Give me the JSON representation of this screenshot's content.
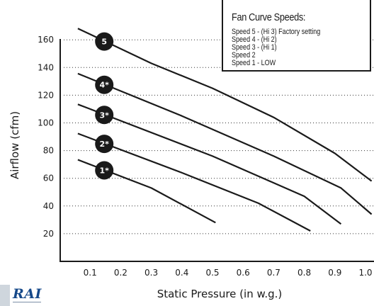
{
  "chart_data": {
    "type": "line",
    "xlabel": "Static Pressure (in w.g.)",
    "ylabel": "Airflow (cfm)",
    "xlim": [
      0,
      1.0
    ],
    "ylim": [
      0,
      170
    ],
    "x_ticks": [
      "0.1",
      "0.2",
      "0.3",
      "0.4",
      "0.5",
      "0.6",
      "0.7",
      "0.8",
      "0.9",
      "1.0"
    ],
    "y_ticks": [
      "20",
      "40",
      "60",
      "80",
      "100",
      "120",
      "140",
      "160"
    ],
    "grid": "horizontal dotted",
    "series": [
      {
        "name": "5",
        "points": [
          [
            0.1,
            164
          ],
          [
            0.3,
            143
          ],
          [
            0.5,
            125
          ],
          [
            0.7,
            104
          ],
          [
            0.9,
            78
          ],
          [
            1.02,
            58
          ]
        ]
      },
      {
        "name": "4*",
        "points": [
          [
            0.1,
            132
          ],
          [
            0.4,
            105
          ],
          [
            0.7,
            76
          ],
          [
            0.92,
            53
          ],
          [
            1.02,
            34
          ]
        ]
      },
      {
        "name": "3*",
        "points": [
          [
            0.1,
            110
          ],
          [
            0.5,
            76
          ],
          [
            0.8,
            47
          ],
          [
            0.92,
            27
          ]
        ]
      },
      {
        "name": "2*",
        "points": [
          [
            0.1,
            89
          ],
          [
            0.4,
            64
          ],
          [
            0.65,
            42
          ],
          [
            0.82,
            22
          ]
        ]
      },
      {
        "name": "1*",
        "points": [
          [
            0.1,
            70
          ],
          [
            0.3,
            53
          ],
          [
            0.51,
            28
          ]
        ]
      }
    ],
    "legend": {
      "title": "Fan Curve Speeds:",
      "items": [
        "Speed 5 - (Hi 3) Factory setting",
        "Speed 4 - (Hi 2)",
        "Speed 3 - (Hi 1)",
        "Speed 2",
        "Speed 1 - LOW"
      ]
    },
    "colors": {
      "line": "#1a1a1a",
      "badge": "#1a1a1a",
      "badge_text": "#ffffff"
    }
  },
  "logo": {
    "text": "RAI"
  }
}
